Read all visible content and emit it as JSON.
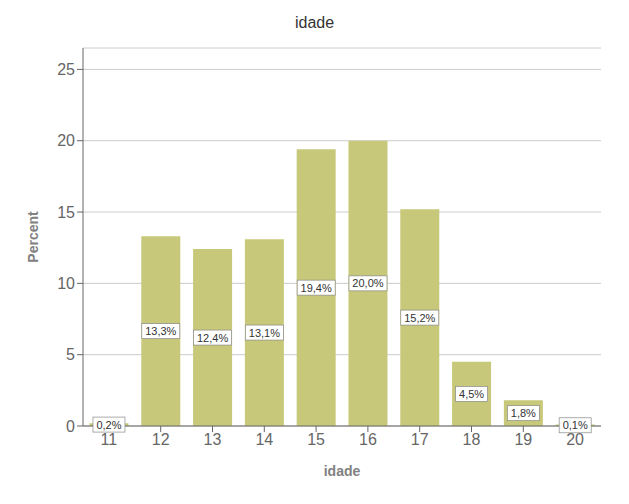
{
  "chart_data": {
    "type": "bar",
    "title": "idade",
    "xlabel": "idade",
    "ylabel": "Percent",
    "categories": [
      11,
      12,
      13,
      14,
      15,
      16,
      17,
      18,
      19,
      20
    ],
    "values": [
      0.2,
      13.3,
      12.4,
      13.1,
      19.4,
      20.0,
      15.2,
      4.5,
      1.8,
      0.1
    ],
    "value_labels": [
      "0,2%",
      "13,3%",
      "12,4%",
      "13,1%",
      "19,4%",
      "20,0%",
      "15,2%",
      "4,5%",
      "1,8%",
      "0,1%"
    ],
    "data_labels": true,
    "color": "#C8C87A",
    "ylim": [
      0,
      26.5
    ],
    "yticks": [
      0,
      5,
      10,
      15,
      20,
      25
    ],
    "grid": true
  }
}
